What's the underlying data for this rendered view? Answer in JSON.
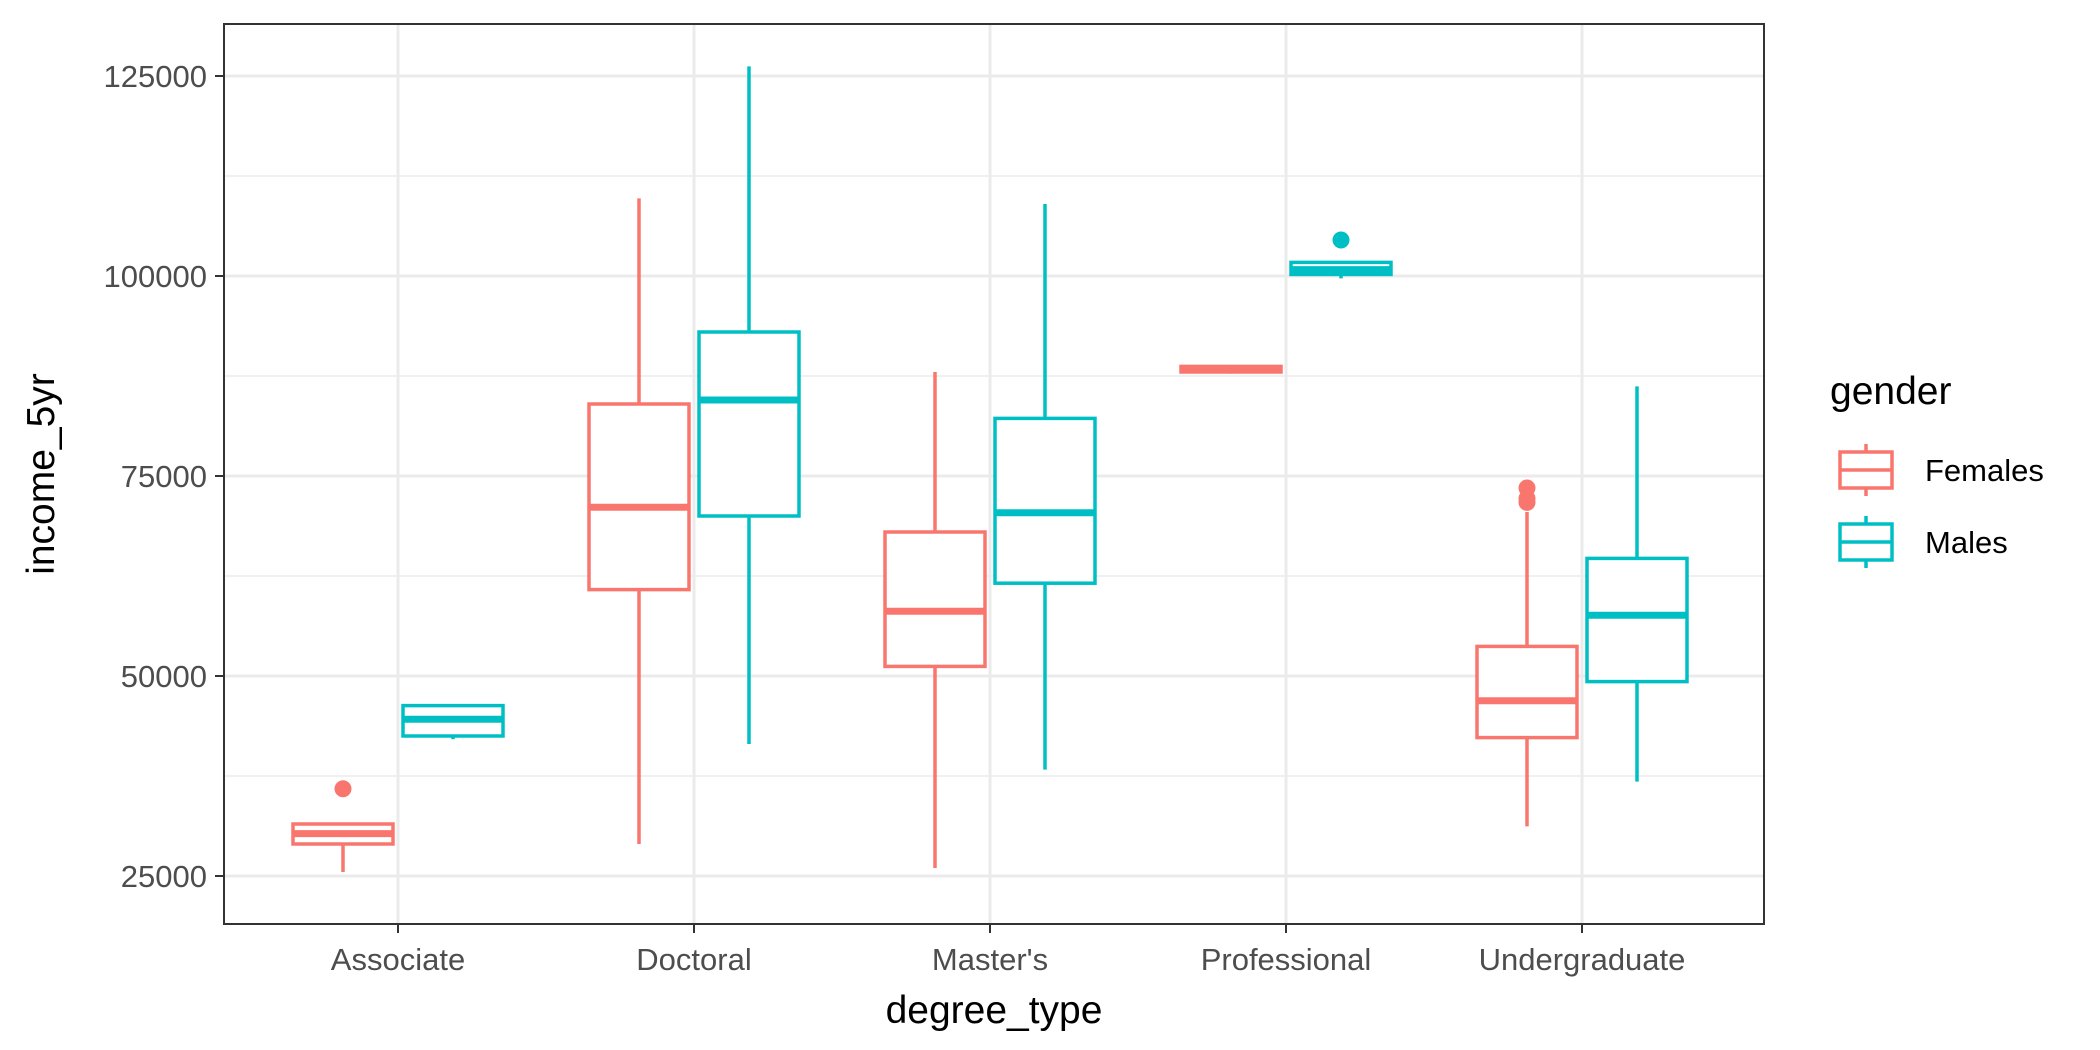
{
  "chart_data": {
    "type": "boxplot",
    "xlabel": "degree_type",
    "ylabel": "income_5yr",
    "categories": [
      "Associate",
      "Doctoral",
      "Master's",
      "Professional",
      "Undergraduate"
    ],
    "yticks": [
      25000,
      50000,
      75000,
      100000,
      125000
    ],
    "ytick_labels": [
      "25000",
      "50000",
      "75000",
      "100000",
      "125000"
    ],
    "ylim": [
      19000,
      131500
    ],
    "grid": true,
    "legend": {
      "title": "gender",
      "position": "right",
      "entries": [
        "Females",
        "Males"
      ]
    },
    "series": [
      {
        "name": "Females",
        "color": "#F8766D",
        "boxes": [
          {
            "category": "Associate",
            "lower_whisker": 25500,
            "q1": 29000,
            "median": 30300,
            "q3": 31500,
            "upper_whisker": 31500,
            "outliers": [
              35900
            ]
          },
          {
            "category": "Doctoral",
            "lower_whisker": 29000,
            "q1": 60800,
            "median": 71100,
            "q3": 84000,
            "upper_whisker": 109700,
            "outliers": []
          },
          {
            "category": "Master's",
            "lower_whisker": 26000,
            "q1": 51200,
            "median": 58100,
            "q3": 68000,
            "upper_whisker": 88000,
            "outliers": []
          },
          {
            "category": "Professional",
            "lower_whisker": 87800,
            "q1": 88000,
            "median": 88400,
            "q3": 88700,
            "upper_whisker": 88700,
            "outliers": []
          },
          {
            "category": "Undergraduate",
            "lower_whisker": 31200,
            "q1": 42300,
            "median": 46900,
            "q3": 53700,
            "upper_whisker": 70500,
            "outliers": [
              73500,
              72200,
              71700
            ]
          }
        ]
      },
      {
        "name": "Males",
        "color": "#00BFC4",
        "boxes": [
          {
            "category": "Associate",
            "lower_whisker": 42100,
            "q1": 42500,
            "median": 44600,
            "q3": 46300,
            "upper_whisker": 46300,
            "outliers": []
          },
          {
            "category": "Doctoral",
            "lower_whisker": 41500,
            "q1": 70000,
            "median": 84500,
            "q3": 93000,
            "upper_whisker": 126200,
            "outliers": []
          },
          {
            "category": "Master's",
            "lower_whisker": 38300,
            "q1": 61600,
            "median": 70400,
            "q3": 82200,
            "upper_whisker": 109000,
            "outliers": []
          },
          {
            "category": "Professional",
            "lower_whisker": 99700,
            "q1": 100200,
            "median": 100800,
            "q3": 101700,
            "upper_whisker": 101700,
            "outliers": [
              104500
            ]
          },
          {
            "category": "Undergraduate",
            "lower_whisker": 36800,
            "q1": 49300,
            "median": 57600,
            "q3": 64700,
            "upper_whisker": 86200,
            "outliers": []
          }
        ]
      }
    ]
  }
}
